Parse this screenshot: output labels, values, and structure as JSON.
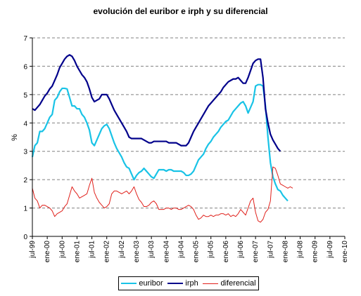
{
  "chart_data": {
    "type": "line",
    "title": "evolución del euribor e irph y su diferencial",
    "ylabel": "%",
    "xlabel": "",
    "ylim": [
      0,
      7
    ],
    "yticks": [
      0,
      1,
      2,
      3,
      4,
      5,
      6,
      7
    ],
    "grid": "horizontal dashed",
    "legend_position": "bottom",
    "categories": [
      "jul-99",
      "ene-00",
      "jul-00",
      "ene-01",
      "jul-01",
      "ene-02",
      "jul-02",
      "ene-03",
      "jul-03",
      "ene-04",
      "jul-04",
      "ene-05",
      "jul-05",
      "ene-06",
      "jul-06",
      "ene-07",
      "jul-07",
      "ene-08",
      "jul-08",
      "ene-09",
      "jul-09",
      "ene-10"
    ],
    "series": [
      {
        "name": "euribor",
        "color": "#19c3e6",
        "values": [
          [
            0,
            2.8
          ],
          [
            1,
            3.2
          ],
          [
            2,
            3.3
          ],
          [
            3,
            3.7
          ],
          [
            4,
            3.7
          ],
          [
            5,
            3.8
          ],
          [
            6,
            4.0
          ],
          [
            7,
            4.2
          ],
          [
            8,
            4.3
          ],
          [
            9,
            4.8
          ],
          [
            10,
            4.9
          ],
          [
            11,
            5.1
          ],
          [
            12,
            5.22
          ],
          [
            13,
            5.22
          ],
          [
            14,
            5.2
          ],
          [
            15,
            4.9
          ],
          [
            16,
            4.6
          ],
          [
            17,
            4.6
          ],
          [
            18,
            4.5
          ],
          [
            19,
            4.5
          ],
          [
            20,
            4.3
          ],
          [
            21,
            4.2
          ],
          [
            22,
            4.0
          ],
          [
            23,
            3.75
          ],
          [
            24,
            3.3
          ],
          [
            25,
            3.2
          ],
          [
            26,
            3.4
          ],
          [
            27,
            3.6
          ],
          [
            28,
            3.8
          ],
          [
            29,
            3.9
          ],
          [
            30,
            3.95
          ],
          [
            31,
            3.8
          ],
          [
            32,
            3.55
          ],
          [
            33,
            3.3
          ],
          [
            34,
            3.1
          ],
          [
            35,
            2.95
          ],
          [
            36,
            2.8
          ],
          [
            37,
            2.6
          ],
          [
            38,
            2.45
          ],
          [
            39,
            2.4
          ],
          [
            40,
            2.2
          ],
          [
            41,
            2.0
          ],
          [
            42,
            2.15
          ],
          [
            43,
            2.25
          ],
          [
            44,
            2.3
          ],
          [
            45,
            2.4
          ],
          [
            46,
            2.3
          ],
          [
            47,
            2.2
          ],
          [
            48,
            2.1
          ],
          [
            49,
            2.05
          ],
          [
            50,
            2.2
          ],
          [
            51,
            2.35
          ],
          [
            52,
            2.35
          ],
          [
            53,
            2.35
          ],
          [
            54,
            2.3
          ],
          [
            55,
            2.35
          ],
          [
            56,
            2.35
          ],
          [
            57,
            2.3
          ],
          [
            58,
            2.3
          ],
          [
            59,
            2.3
          ],
          [
            60,
            2.3
          ],
          [
            61,
            2.25
          ],
          [
            62,
            2.15
          ],
          [
            63,
            2.15
          ],
          [
            64,
            2.2
          ],
          [
            65,
            2.3
          ],
          [
            66,
            2.5
          ],
          [
            67,
            2.7
          ],
          [
            68,
            2.8
          ],
          [
            69,
            2.9
          ],
          [
            70,
            3.1
          ],
          [
            71,
            3.25
          ],
          [
            72,
            3.35
          ],
          [
            73,
            3.5
          ],
          [
            74,
            3.6
          ],
          [
            75,
            3.7
          ],
          [
            76,
            3.85
          ],
          [
            77,
            3.95
          ],
          [
            78,
            4.05
          ],
          [
            79,
            4.1
          ],
          [
            80,
            4.25
          ],
          [
            81,
            4.4
          ],
          [
            82,
            4.5
          ],
          [
            83,
            4.6
          ],
          [
            84,
            4.7
          ],
          [
            85,
            4.75
          ],
          [
            86,
            4.6
          ],
          [
            87,
            4.35
          ],
          [
            88,
            4.55
          ],
          [
            89,
            4.75
          ],
          [
            90,
            5.3
          ],
          [
            91,
            5.35
          ],
          [
            92,
            5.35
          ],
          [
            93,
            5.3
          ],
          [
            94,
            4.6
          ],
          [
            95,
            3.5
          ],
          [
            96,
            2.6
          ],
          [
            97,
            2.1
          ],
          [
            98,
            1.85
          ],
          [
            99,
            1.65
          ],
          [
            100,
            1.6
          ],
          [
            101,
            1.45
          ],
          [
            102,
            1.35
          ],
          [
            103,
            1.25
          ]
        ]
      },
      {
        "name": "irph",
        "color": "#00008b",
        "values": [
          [
            0,
            4.5
          ],
          [
            1,
            4.45
          ],
          [
            2,
            4.55
          ],
          [
            3,
            4.65
          ],
          [
            4,
            4.8
          ],
          [
            5,
            4.95
          ],
          [
            6,
            5.05
          ],
          [
            7,
            5.2
          ],
          [
            8,
            5.3
          ],
          [
            9,
            5.5
          ],
          [
            10,
            5.7
          ],
          [
            11,
            5.95
          ],
          [
            12,
            6.1
          ],
          [
            13,
            6.25
          ],
          [
            14,
            6.35
          ],
          [
            15,
            6.4
          ],
          [
            16,
            6.35
          ],
          [
            17,
            6.2
          ],
          [
            18,
            6.0
          ],
          [
            19,
            5.85
          ],
          [
            20,
            5.7
          ],
          [
            21,
            5.6
          ],
          [
            22,
            5.45
          ],
          [
            23,
            5.2
          ],
          [
            24,
            4.9
          ],
          [
            25,
            4.75
          ],
          [
            26,
            4.8
          ],
          [
            27,
            4.85
          ],
          [
            28,
            5.0
          ],
          [
            29,
            5.0
          ],
          [
            30,
            5.0
          ],
          [
            31,
            4.85
          ],
          [
            32,
            4.65
          ],
          [
            33,
            4.45
          ],
          [
            34,
            4.3
          ],
          [
            35,
            4.15
          ],
          [
            36,
            4.0
          ],
          [
            37,
            3.85
          ],
          [
            38,
            3.7
          ],
          [
            39,
            3.5
          ],
          [
            40,
            3.45
          ],
          [
            41,
            3.45
          ],
          [
            42,
            3.45
          ],
          [
            43,
            3.45
          ],
          [
            44,
            3.45
          ],
          [
            45,
            3.4
          ],
          [
            46,
            3.35
          ],
          [
            47,
            3.3
          ],
          [
            48,
            3.3
          ],
          [
            49,
            3.35
          ],
          [
            50,
            3.35
          ],
          [
            51,
            3.35
          ],
          [
            52,
            3.35
          ],
          [
            53,
            3.35
          ],
          [
            54,
            3.35
          ],
          [
            55,
            3.3
          ],
          [
            56,
            3.3
          ],
          [
            57,
            3.3
          ],
          [
            58,
            3.3
          ],
          [
            59,
            3.25
          ],
          [
            60,
            3.2
          ],
          [
            61,
            3.2
          ],
          [
            62,
            3.2
          ],
          [
            63,
            3.3
          ],
          [
            64,
            3.5
          ],
          [
            65,
            3.7
          ],
          [
            66,
            3.85
          ],
          [
            67,
            4.0
          ],
          [
            68,
            4.15
          ],
          [
            69,
            4.3
          ],
          [
            70,
            4.45
          ],
          [
            71,
            4.6
          ],
          [
            72,
            4.7
          ],
          [
            73,
            4.8
          ],
          [
            74,
            4.9
          ],
          [
            75,
            5.0
          ],
          [
            76,
            5.1
          ],
          [
            77,
            5.25
          ],
          [
            78,
            5.35
          ],
          [
            79,
            5.45
          ],
          [
            80,
            5.5
          ],
          [
            81,
            5.55
          ],
          [
            82,
            5.55
          ],
          [
            83,
            5.6
          ],
          [
            84,
            5.5
          ],
          [
            85,
            5.4
          ],
          [
            86,
            5.4
          ],
          [
            87,
            5.6
          ],
          [
            88,
            5.85
          ],
          [
            89,
            6.1
          ],
          [
            90,
            6.2
          ],
          [
            91,
            6.25
          ],
          [
            92,
            6.25
          ],
          [
            93,
            5.6
          ],
          [
            94,
            4.5
          ],
          [
            95,
            4.0
          ],
          [
            96,
            3.6
          ],
          [
            97,
            3.4
          ],
          [
            98,
            3.25
          ],
          [
            99,
            3.1
          ],
          [
            100,
            3.0
          ]
        ]
      },
      {
        "name": "diferencial",
        "color": "#e0201b",
        "values": [
          [
            0,
            1.7
          ],
          [
            1,
            1.35
          ],
          [
            2,
            1.25
          ],
          [
            3,
            1.0
          ],
          [
            4,
            1.1
          ],
          [
            5,
            1.1
          ],
          [
            6,
            1.05
          ],
          [
            7,
            1.0
          ],
          [
            8,
            0.9
          ],
          [
            9,
            0.7
          ],
          [
            10,
            0.8
          ],
          [
            11,
            0.85
          ],
          [
            12,
            0.9
          ],
          [
            13,
            1.05
          ],
          [
            14,
            1.15
          ],
          [
            15,
            1.45
          ],
          [
            16,
            1.75
          ],
          [
            17,
            1.6
          ],
          [
            18,
            1.5
          ],
          [
            19,
            1.35
          ],
          [
            20,
            1.4
          ],
          [
            21,
            1.45
          ],
          [
            22,
            1.5
          ],
          [
            23,
            1.8
          ],
          [
            24,
            2.05
          ],
          [
            25,
            1.55
          ],
          [
            26,
            1.35
          ],
          [
            27,
            1.2
          ],
          [
            28,
            1.1
          ],
          [
            29,
            1.0
          ],
          [
            30,
            1.05
          ],
          [
            31,
            1.15
          ],
          [
            32,
            1.5
          ],
          [
            33,
            1.6
          ],
          [
            34,
            1.6
          ],
          [
            35,
            1.55
          ],
          [
            36,
            1.5
          ],
          [
            37,
            1.55
          ],
          [
            38,
            1.6
          ],
          [
            39,
            1.5
          ],
          [
            40,
            1.6
          ],
          [
            41,
            1.75
          ],
          [
            42,
            1.5
          ],
          [
            43,
            1.3
          ],
          [
            44,
            1.2
          ],
          [
            45,
            1.05
          ],
          [
            46,
            1.05
          ],
          [
            47,
            1.1
          ],
          [
            48,
            1.2
          ],
          [
            49,
            1.25
          ],
          [
            50,
            1.15
          ],
          [
            51,
            0.95
          ],
          [
            52,
            0.95
          ],
          [
            53,
            0.95
          ],
          [
            54,
            1.0
          ],
          [
            55,
            1.0
          ],
          [
            56,
            0.95
          ],
          [
            57,
            1.0
          ],
          [
            58,
            1.0
          ],
          [
            59,
            0.95
          ],
          [
            60,
            0.95
          ],
          [
            61,
            1.0
          ],
          [
            62,
            1.05
          ],
          [
            63,
            1.1
          ],
          [
            64,
            1.05
          ],
          [
            65,
            0.95
          ],
          [
            66,
            0.75
          ],
          [
            67,
            0.6
          ],
          [
            68,
            0.65
          ],
          [
            69,
            0.75
          ],
          [
            70,
            0.7
          ],
          [
            71,
            0.7
          ],
          [
            72,
            0.75
          ],
          [
            73,
            0.7
          ],
          [
            74,
            0.75
          ],
          [
            75,
            0.75
          ],
          [
            76,
            0.8
          ],
          [
            77,
            0.8
          ],
          [
            78,
            0.75
          ],
          [
            79,
            0.8
          ],
          [
            80,
            0.7
          ],
          [
            81,
            0.75
          ],
          [
            82,
            0.7
          ],
          [
            83,
            0.8
          ],
          [
            84,
            0.95
          ],
          [
            85,
            0.85
          ],
          [
            86,
            0.75
          ],
          [
            87,
            1.0
          ],
          [
            88,
            1.25
          ],
          [
            89,
            1.35
          ],
          [
            90,
            0.85
          ],
          [
            91,
            0.55
          ],
          [
            92,
            0.5
          ],
          [
            93,
            0.6
          ],
          [
            94,
            0.85
          ],
          [
            95,
            0.95
          ],
          [
            96,
            1.25
          ],
          [
            97,
            2.45
          ],
          [
            98,
            2.4
          ],
          [
            99,
            2.15
          ],
          [
            100,
            1.85
          ],
          [
            101,
            1.8
          ],
          [
            102,
            1.75
          ],
          [
            103,
            1.7
          ],
          [
            104,
            1.75
          ],
          [
            105,
            1.7
          ]
        ]
      }
    ]
  }
}
